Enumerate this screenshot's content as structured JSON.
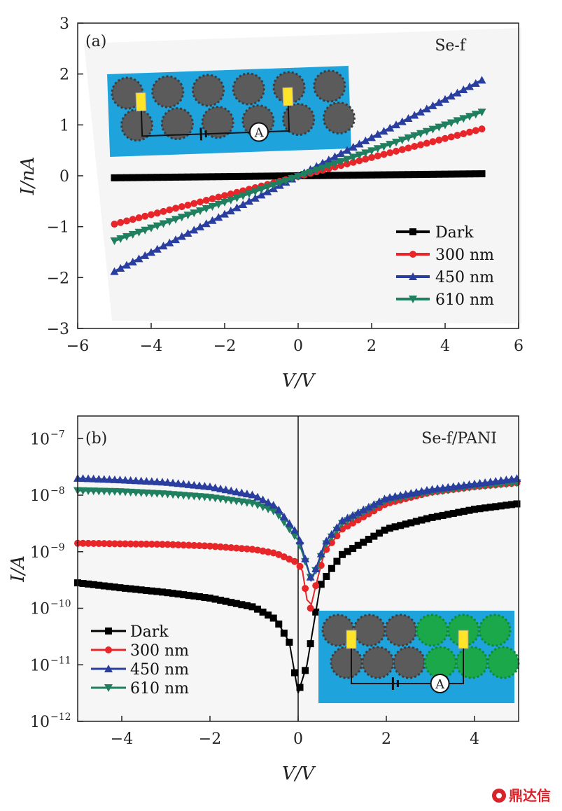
{
  "chart_data": [
    {
      "type": "line",
      "panel_label": "(a)",
      "title": "Se-f",
      "xlabel": "V/V",
      "ylabel": "I/nA",
      "xlim": [
        -6,
        6
      ],
      "ylim": [
        -3,
        3
      ],
      "xticks": [
        "−6",
        "−4",
        "−2",
        "0",
        "2",
        "4",
        "6"
      ],
      "yticks": [
        "3",
        "2",
        "1",
        "0",
        "−1",
        "−2",
        "−3"
      ],
      "legend_position": "bottom-right",
      "series": [
        {
          "name": "Dark",
          "color": "#000000",
          "marker": "square",
          "x": [
            -5,
            5
          ],
          "y": [
            -0.04,
            0.04
          ]
        },
        {
          "name": "300 nm",
          "color": "#e8262a",
          "marker": "circle",
          "x": [
            -5,
            5
          ],
          "y": [
            -0.95,
            0.92
          ]
        },
        {
          "name": "450 nm",
          "color": "#2a3ea0",
          "marker": "triangle-up",
          "x": [
            -5,
            5
          ],
          "y": [
            -1.88,
            1.88
          ]
        },
        {
          "name": "610 nm",
          "color": "#1f7f5e",
          "marker": "triangle-down",
          "x": [
            -5,
            5
          ],
          "y": [
            -1.28,
            1.25
          ]
        }
      ],
      "inset": {
        "description": "device schematic",
        "meter_label": "A"
      }
    },
    {
      "type": "line",
      "yscale": "log",
      "panel_label": "(b)",
      "title": "Se-f/PANI",
      "xlabel": "V/V",
      "ylabel": "I/A",
      "xlim": [
        -5,
        5
      ],
      "ylim_exp": [
        -12,
        -6.6
      ],
      "xticks": [
        "−4",
        "−2",
        "0",
        "2",
        "4"
      ],
      "yticks": [
        "−7",
        "−8",
        "−9",
        "−10",
        "−11",
        "−12"
      ],
      "yticks_base": "10",
      "legend_position": "bottom-left",
      "series": [
        {
          "name": "Dark",
          "color": "#000000",
          "marker": "square",
          "x": [
            -5,
            -4,
            -3,
            -2,
            -1,
            -0.5,
            -0.2,
            0,
            0.2,
            0.35,
            0.5,
            0.8,
            1,
            2,
            3,
            4,
            5
          ],
          "log10_y": [
            -9.55,
            -9.64,
            -9.72,
            -9.82,
            -9.98,
            -10.2,
            -10.6,
            -11.5,
            -11.0,
            -10.3,
            -9.6,
            -9.25,
            -9.05,
            -8.6,
            -8.4,
            -8.25,
            -8.15
          ]
        },
        {
          "name": "300 nm",
          "color": "#e8262a",
          "marker": "circle",
          "x": [
            -5,
            -4,
            -3,
            -2,
            -1,
            -0.5,
            0,
            0.1,
            0.25,
            0.4,
            0.6,
            1,
            2,
            3,
            4,
            5
          ],
          "log10_y": [
            -8.85,
            -8.86,
            -8.87,
            -8.9,
            -8.96,
            -9.03,
            -9.2,
            -9.35,
            -10.1,
            -9.6,
            -9.0,
            -8.6,
            -8.15,
            -7.95,
            -7.85,
            -7.78
          ]
        },
        {
          "name": "450 nm",
          "color": "#2a3ea0",
          "marker": "triangle-up",
          "x": [
            -5,
            -4,
            -3,
            -2,
            -1,
            -0.5,
            0,
            0.15,
            0.3,
            0.45,
            0.6,
            1,
            2,
            3,
            4,
            5
          ],
          "log10_y": [
            -7.7,
            -7.73,
            -7.77,
            -7.85,
            -8.0,
            -8.2,
            -8.7,
            -9.1,
            -9.5,
            -9.2,
            -8.85,
            -8.45,
            -8.05,
            -7.9,
            -7.8,
            -7.7
          ]
        },
        {
          "name": "610 nm",
          "color": "#1f7f5e",
          "marker": "triangle-down",
          "x": [
            -5,
            -4,
            -3,
            -2,
            -1,
            -0.5,
            0,
            0.15,
            0.3,
            0.45,
            0.6,
            1,
            2,
            3,
            4,
            5
          ],
          "log10_y": [
            -7.92,
            -7.94,
            -7.98,
            -8.04,
            -8.15,
            -8.3,
            -8.8,
            -9.15,
            -9.5,
            -9.25,
            -8.9,
            -8.5,
            -8.1,
            -7.95,
            -7.85,
            -7.78
          ]
        }
      ],
      "inset": {
        "description": "device schematic",
        "meter_label": "A"
      }
    }
  ],
  "watermark": "鼎达信"
}
